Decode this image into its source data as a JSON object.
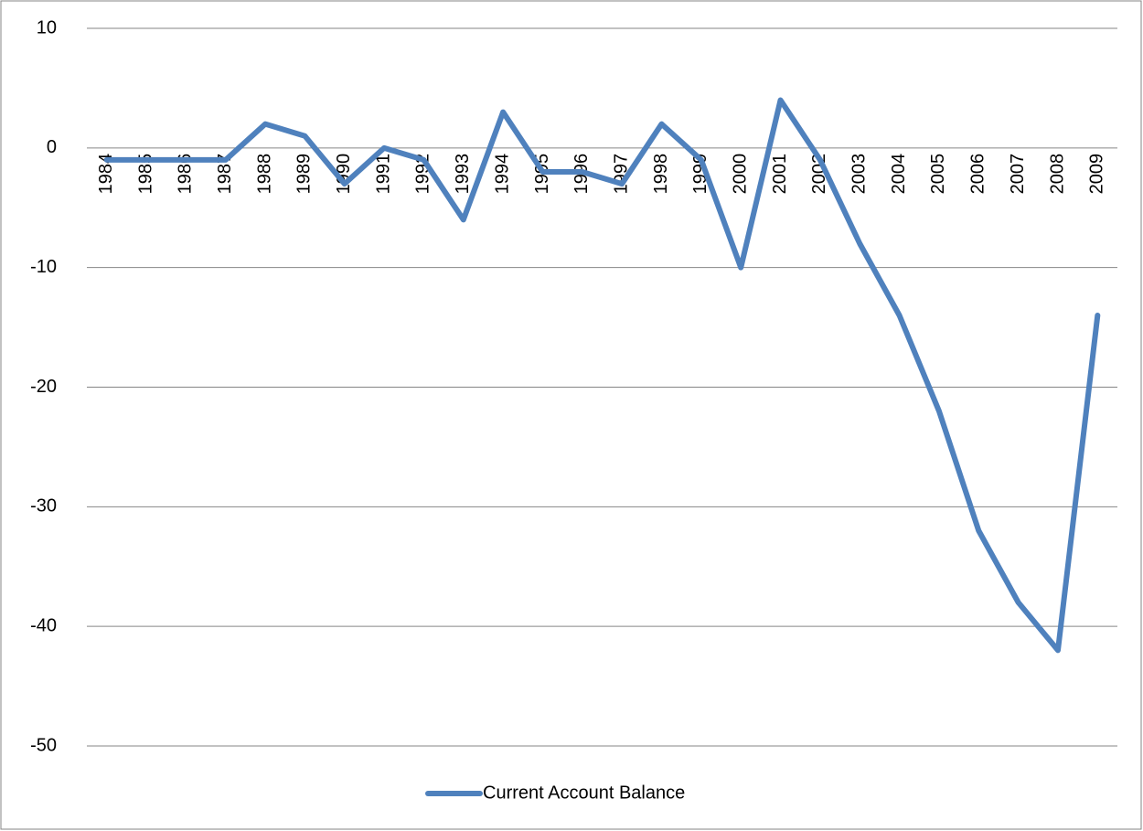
{
  "chart_data": {
    "type": "line",
    "categories": [
      "1984",
      "1985",
      "1986",
      "1987",
      "1988",
      "1989",
      "1990",
      "1991",
      "1992",
      "1993",
      "1994",
      "1995",
      "1996",
      "1997",
      "1998",
      "1999",
      "2000",
      "2001",
      "2002",
      "2003",
      "2004",
      "2005",
      "2006",
      "2007",
      "2008",
      "2009"
    ],
    "series": [
      {
        "name": "Current Account Balance",
        "color": "#4f81bd",
        "values": [
          -1,
          -1,
          -1,
          -1,
          2,
          1,
          -3,
          0,
          -1,
          -6,
          3,
          -2,
          -2,
          -3,
          2,
          -1,
          -10,
          4,
          -1,
          -8,
          -14,
          -22,
          -32,
          -38,
          -42,
          -14
        ]
      }
    ],
    "ylim": [
      -50,
      10
    ],
    "yticks": [
      10,
      0,
      -10,
      -20,
      -30,
      -40,
      -50
    ],
    "grid": true,
    "legend": "bottom"
  }
}
